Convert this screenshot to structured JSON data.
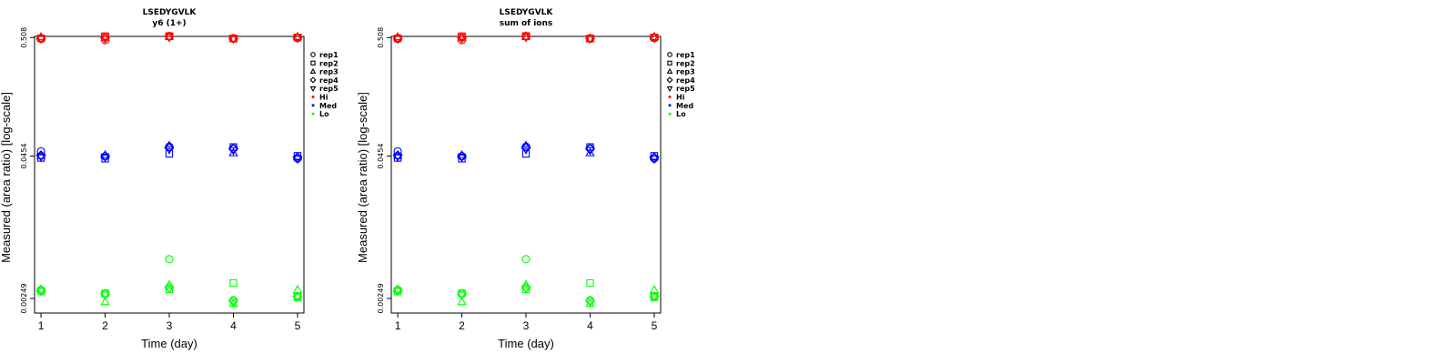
{
  "chart_data": [
    {
      "type": "scatter",
      "title": "LSEDYGVLK",
      "subtitle": "y6 (1+)",
      "xlabel": "Time (day)",
      "ylabel": "Measured (area ratio) [log-scale]",
      "x_ticks": [
        "1",
        "2",
        "3",
        "4",
        "5"
      ],
      "y_ticks": [
        "0.00249",
        "0.0454",
        "0.508"
      ],
      "y_scale": "log",
      "xlim": [
        0.9,
        5.1
      ],
      "ylim": [
        0.00185,
        0.52
      ],
      "grid": false,
      "legend": [
        "rep1",
        "rep2",
        "rep3",
        "rep4",
        "rep5",
        "Hi",
        "Med",
        "Lo"
      ],
      "legend_position": "right",
      "series": [
        {
          "name": "Hi",
          "color": "#ff0000",
          "points": [
            {
              "rep": 1,
              "x": 1,
              "y": 0.495
            },
            {
              "rep": 2,
              "x": 1,
              "y": 0.5
            },
            {
              "rep": 3,
              "x": 1,
              "y": 0.513
            },
            {
              "rep": 4,
              "x": 1,
              "y": 0.498
            },
            {
              "rep": 5,
              "x": 1,
              "y": 0.496
            },
            {
              "rep": 1,
              "x": 2,
              "y": 0.482
            },
            {
              "rep": 2,
              "x": 2,
              "y": 0.522
            },
            {
              "rep": 3,
              "x": 2,
              "y": 0.508
            },
            {
              "rep": 4,
              "x": 2,
              "y": 0.502
            },
            {
              "rep": 5,
              "x": 2,
              "y": 0.515
            },
            {
              "rep": 1,
              "x": 3,
              "y": 0.52
            },
            {
              "rep": 2,
              "x": 3,
              "y": 0.524
            },
            {
              "rep": 3,
              "x": 3,
              "y": 0.517
            },
            {
              "rep": 4,
              "x": 3,
              "y": 0.519
            },
            {
              "rep": 5,
              "x": 3,
              "y": 0.512
            },
            {
              "rep": 1,
              "x": 4,
              "y": 0.497
            },
            {
              "rep": 2,
              "x": 4,
              "y": 0.5
            },
            {
              "rep": 3,
              "x": 4,
              "y": 0.494
            },
            {
              "rep": 4,
              "x": 4,
              "y": 0.498
            },
            {
              "rep": 5,
              "x": 4,
              "y": 0.496
            },
            {
              "rep": 1,
              "x": 5,
              "y": 0.503
            },
            {
              "rep": 2,
              "x": 5,
              "y": 0.508
            },
            {
              "rep": 3,
              "x": 5,
              "y": 0.516
            },
            {
              "rep": 4,
              "x": 5,
              "y": 0.505
            },
            {
              "rep": 5,
              "x": 5,
              "y": 0.512
            }
          ]
        },
        {
          "name": "Med",
          "color": "#0000ff",
          "points": [
            {
              "rep": 1,
              "x": 1,
              "y": 0.05
            },
            {
              "rep": 2,
              "x": 1,
              "y": 0.0437
            },
            {
              "rep": 3,
              "x": 1,
              "y": 0.0457
            },
            {
              "rep": 4,
              "x": 1,
              "y": 0.046
            },
            {
              "rep": 5,
              "x": 1,
              "y": 0.0448
            },
            {
              "rep": 1,
              "x": 2,
              "y": 0.0452
            },
            {
              "rep": 2,
              "x": 2,
              "y": 0.043
            },
            {
              "rep": 3,
              "x": 2,
              "y": 0.0461
            },
            {
              "rep": 4,
              "x": 2,
              "y": 0.045
            },
            {
              "rep": 5,
              "x": 2,
              "y": 0.0446
            },
            {
              "rep": 1,
              "x": 3,
              "y": 0.055
            },
            {
              "rep": 2,
              "x": 3,
              "y": 0.0475
            },
            {
              "rep": 3,
              "x": 3,
              "y": 0.056
            },
            {
              "rep": 4,
              "x": 3,
              "y": 0.0535
            },
            {
              "rep": 5,
              "x": 3,
              "y": 0.052
            },
            {
              "rep": 1,
              "x": 4,
              "y": 0.053
            },
            {
              "rep": 2,
              "x": 4,
              "y": 0.0545
            },
            {
              "rep": 3,
              "x": 4,
              "y": 0.0483
            },
            {
              "rep": 4,
              "x": 4,
              "y": 0.0525
            },
            {
              "rep": 5,
              "x": 4,
              "y": 0.051
            },
            {
              "rep": 1,
              "x": 5,
              "y": 0.0432
            },
            {
              "rep": 2,
              "x": 5,
              "y": 0.0455
            },
            {
              "rep": 3,
              "x": 5,
              "y": 0.0445
            },
            {
              "rep": 4,
              "x": 5,
              "y": 0.0441
            },
            {
              "rep": 5,
              "x": 5,
              "y": 0.0428
            }
          ]
        },
        {
          "name": "Lo",
          "color": "#00ff00",
          "points": [
            {
              "rep": 1,
              "x": 1,
              "y": 0.00297
            },
            {
              "rep": 2,
              "x": 1,
              "y": 0.00287
            },
            {
              "rep": 3,
              "x": 1,
              "y": 0.003
            },
            {
              "rep": 4,
              "x": 1,
              "y": 0.00292
            },
            {
              "rep": 5,
              "x": 1,
              "y": 0.00289
            },
            {
              "rep": 1,
              "x": 2,
              "y": 0.00277
            },
            {
              "rep": 2,
              "x": 2,
              "y": 0.00276
            },
            {
              "rep": 3,
              "x": 2,
              "y": 0.00232
            },
            {
              "rep": 4,
              "x": 2,
              "y": 0.00272
            },
            {
              "rep": 5,
              "x": 2,
              "y": 0.00268
            },
            {
              "rep": 1,
              "x": 3,
              "y": 0.00555
            },
            {
              "rep": 2,
              "x": 3,
              "y": 0.003
            },
            {
              "rep": 3,
              "x": 3,
              "y": 0.00328
            },
            {
              "rep": 4,
              "x": 3,
              "y": 0.0031
            },
            {
              "rep": 5,
              "x": 3,
              "y": 0.00305
            },
            {
              "rep": 1,
              "x": 4,
              "y": 0.0024
            },
            {
              "rep": 2,
              "x": 4,
              "y": 0.00341
            },
            {
              "rep": 3,
              "x": 4,
              "y": 0.00224
            },
            {
              "rep": 4,
              "x": 4,
              "y": 0.00236
            },
            {
              "rep": 5,
              "x": 4,
              "y": 0.0023
            },
            {
              "rep": 1,
              "x": 5,
              "y": 0.00258
            },
            {
              "rep": 2,
              "x": 5,
              "y": 0.00255
            },
            {
              "rep": 3,
              "x": 5,
              "y": 0.00296
            },
            {
              "rep": 4,
              "x": 5,
              "y": 0.0026
            },
            {
              "rep": 5,
              "x": 5,
              "y": 0.00262
            }
          ]
        }
      ]
    },
    {
      "type": "scatter",
      "title": "LSEDYGVLK",
      "subtitle": "sum of ions",
      "xlabel": "Time (day)",
      "ylabel": "Measured (area ratio) [log-scale]",
      "x_ticks": [
        "1",
        "2",
        "3",
        "4",
        "5"
      ],
      "y_ticks": [
        "0.00249",
        "0.0454",
        "0.508"
      ],
      "y_scale": "log",
      "xlim": [
        0.9,
        5.1
      ],
      "ylim": [
        0.00185,
        0.52
      ],
      "grid": false,
      "legend": [
        "rep1",
        "rep2",
        "rep3",
        "rep4",
        "rep5",
        "Hi",
        "Med",
        "Lo"
      ],
      "legend_position": "right",
      "series": [
        {
          "name": "Hi",
          "color": "#ff0000",
          "points": [
            {
              "rep": 1,
              "x": 1,
              "y": 0.495
            },
            {
              "rep": 2,
              "x": 1,
              "y": 0.5
            },
            {
              "rep": 3,
              "x": 1,
              "y": 0.513
            },
            {
              "rep": 4,
              "x": 1,
              "y": 0.498
            },
            {
              "rep": 5,
              "x": 1,
              "y": 0.496
            },
            {
              "rep": 1,
              "x": 2,
              "y": 0.482
            },
            {
              "rep": 2,
              "x": 2,
              "y": 0.522
            },
            {
              "rep": 3,
              "x": 2,
              "y": 0.508
            },
            {
              "rep": 4,
              "x": 2,
              "y": 0.502
            },
            {
              "rep": 5,
              "x": 2,
              "y": 0.515
            },
            {
              "rep": 1,
              "x": 3,
              "y": 0.52
            },
            {
              "rep": 2,
              "x": 3,
              "y": 0.524
            },
            {
              "rep": 3,
              "x": 3,
              "y": 0.517
            },
            {
              "rep": 4,
              "x": 3,
              "y": 0.519
            },
            {
              "rep": 5,
              "x": 3,
              "y": 0.512
            },
            {
              "rep": 1,
              "x": 4,
              "y": 0.497
            },
            {
              "rep": 2,
              "x": 4,
              "y": 0.5
            },
            {
              "rep": 3,
              "x": 4,
              "y": 0.494
            },
            {
              "rep": 4,
              "x": 4,
              "y": 0.498
            },
            {
              "rep": 5,
              "x": 4,
              "y": 0.496
            },
            {
              "rep": 1,
              "x": 5,
              "y": 0.503
            },
            {
              "rep": 2,
              "x": 5,
              "y": 0.508
            },
            {
              "rep": 3,
              "x": 5,
              "y": 0.516
            },
            {
              "rep": 4,
              "x": 5,
              "y": 0.505
            },
            {
              "rep": 5,
              "x": 5,
              "y": 0.512
            }
          ]
        },
        {
          "name": "Med",
          "color": "#0000ff",
          "points": [
            {
              "rep": 1,
              "x": 1,
              "y": 0.05
            },
            {
              "rep": 2,
              "x": 1,
              "y": 0.0437
            },
            {
              "rep": 3,
              "x": 1,
              "y": 0.0457
            },
            {
              "rep": 4,
              "x": 1,
              "y": 0.046
            },
            {
              "rep": 5,
              "x": 1,
              "y": 0.0448
            },
            {
              "rep": 1,
              "x": 2,
              "y": 0.0452
            },
            {
              "rep": 2,
              "x": 2,
              "y": 0.043
            },
            {
              "rep": 3,
              "x": 2,
              "y": 0.0461
            },
            {
              "rep": 4,
              "x": 2,
              "y": 0.045
            },
            {
              "rep": 5,
              "x": 2,
              "y": 0.0446
            },
            {
              "rep": 1,
              "x": 3,
              "y": 0.055
            },
            {
              "rep": 2,
              "x": 3,
              "y": 0.0475
            },
            {
              "rep": 3,
              "x": 3,
              "y": 0.056
            },
            {
              "rep": 4,
              "x": 3,
              "y": 0.0535
            },
            {
              "rep": 5,
              "x": 3,
              "y": 0.052
            },
            {
              "rep": 1,
              "x": 4,
              "y": 0.053
            },
            {
              "rep": 2,
              "x": 4,
              "y": 0.0545
            },
            {
              "rep": 3,
              "x": 4,
              "y": 0.0483
            },
            {
              "rep": 4,
              "x": 4,
              "y": 0.0525
            },
            {
              "rep": 5,
              "x": 4,
              "y": 0.051
            },
            {
              "rep": 1,
              "x": 5,
              "y": 0.0432
            },
            {
              "rep": 2,
              "x": 5,
              "y": 0.0455
            },
            {
              "rep": 3,
              "x": 5,
              "y": 0.0445
            },
            {
              "rep": 4,
              "x": 5,
              "y": 0.0441
            },
            {
              "rep": 5,
              "x": 5,
              "y": 0.0428
            }
          ]
        },
        {
          "name": "Lo",
          "color": "#00ff00",
          "points": [
            {
              "rep": 1,
              "x": 1,
              "y": 0.00297
            },
            {
              "rep": 2,
              "x": 1,
              "y": 0.00287
            },
            {
              "rep": 3,
              "x": 1,
              "y": 0.003
            },
            {
              "rep": 4,
              "x": 1,
              "y": 0.00292
            },
            {
              "rep": 5,
              "x": 1,
              "y": 0.00289
            },
            {
              "rep": 1,
              "x": 2,
              "y": 0.00277
            },
            {
              "rep": 2,
              "x": 2,
              "y": 0.00276
            },
            {
              "rep": 3,
              "x": 2,
              "y": 0.00232
            },
            {
              "rep": 4,
              "x": 2,
              "y": 0.00272
            },
            {
              "rep": 5,
              "x": 2,
              "y": 0.00268
            },
            {
              "rep": 1,
              "x": 3,
              "y": 0.00555
            },
            {
              "rep": 2,
              "x": 3,
              "y": 0.003
            },
            {
              "rep": 3,
              "x": 3,
              "y": 0.00328
            },
            {
              "rep": 4,
              "x": 3,
              "y": 0.0031
            },
            {
              "rep": 5,
              "x": 3,
              "y": 0.00305
            },
            {
              "rep": 1,
              "x": 4,
              "y": 0.0024
            },
            {
              "rep": 2,
              "x": 4,
              "y": 0.00341
            },
            {
              "rep": 3,
              "x": 4,
              "y": 0.00224
            },
            {
              "rep": 4,
              "x": 4,
              "y": 0.00236
            },
            {
              "rep": 5,
              "x": 4,
              "y": 0.0023
            },
            {
              "rep": 1,
              "x": 5,
              "y": 0.00258
            },
            {
              "rep": 2,
              "x": 5,
              "y": 0.00255
            },
            {
              "rep": 3,
              "x": 5,
              "y": 0.00296
            },
            {
              "rep": 4,
              "x": 5,
              "y": 0.0026
            },
            {
              "rep": 5,
              "x": 5,
              "y": 0.00262
            }
          ]
        }
      ]
    }
  ]
}
